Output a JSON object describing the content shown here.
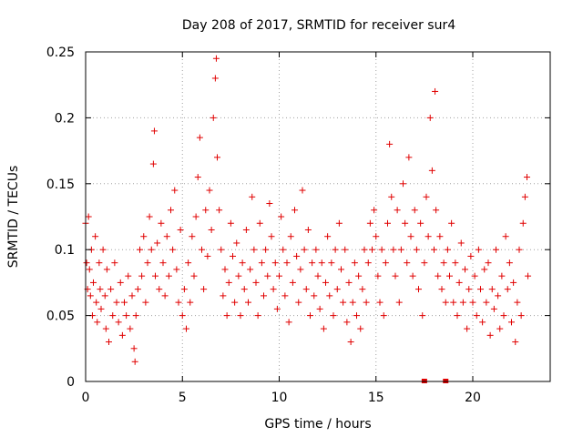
{
  "chart_data": {
    "type": "scatter",
    "title": "Day 208 of 2017, SRMTID for receiver sur4",
    "xlabel": "GPS time / hours",
    "ylabel": "SRMTID / TECUs",
    "xlim": [
      0,
      24
    ],
    "ylim": [
      0,
      0.25
    ],
    "xticks": [
      0,
      5,
      10,
      15,
      20
    ],
    "xtick_labels": [
      "0",
      "5",
      "10",
      "15",
      "20"
    ],
    "yticks": [
      0,
      0.05,
      0.1,
      0.15,
      0.2,
      0.25
    ],
    "ytick_labels": [
      "0",
      "0.05",
      "0.1",
      "0.15",
      "0.2",
      "0.25"
    ],
    "grid": true,
    "marker": "+",
    "color": "#e00000",
    "gap_markers_x": [
      17.5,
      18.6
    ],
    "points": [
      [
        0.0,
        0.12
      ],
      [
        0.05,
        0.09
      ],
      [
        0.1,
        0.07
      ],
      [
        0.15,
        0.125
      ],
      [
        0.2,
        0.085
      ],
      [
        0.25,
        0.065
      ],
      [
        0.3,
        0.1
      ],
      [
        0.35,
        0.05
      ],
      [
        0.4,
        0.075
      ],
      [
        0.5,
        0.11
      ],
      [
        0.55,
        0.06
      ],
      [
        0.6,
        0.045
      ],
      [
        0.7,
        0.09
      ],
      [
        0.75,
        0.07
      ],
      [
        0.8,
        0.055
      ],
      [
        0.9,
        0.1
      ],
      [
        1.0,
        0.065
      ],
      [
        1.05,
        0.04
      ],
      [
        1.1,
        0.085
      ],
      [
        1.2,
        0.03
      ],
      [
        1.3,
        0.07
      ],
      [
        1.4,
        0.05
      ],
      [
        1.5,
        0.09
      ],
      [
        1.6,
        0.06
      ],
      [
        1.7,
        0.045
      ],
      [
        1.8,
        0.075
      ],
      [
        1.9,
        0.035
      ],
      [
        2.0,
        0.06
      ],
      [
        2.1,
        0.05
      ],
      [
        2.2,
        0.08
      ],
      [
        2.3,
        0.04
      ],
      [
        2.4,
        0.065
      ],
      [
        2.5,
        0.025
      ],
      [
        2.55,
        0.015
      ],
      [
        2.6,
        0.05
      ],
      [
        2.7,
        0.07
      ],
      [
        2.8,
        0.1
      ],
      [
        2.9,
        0.08
      ],
      [
        3.0,
        0.11
      ],
      [
        3.1,
        0.06
      ],
      [
        3.2,
        0.09
      ],
      [
        3.3,
        0.125
      ],
      [
        3.4,
        0.1
      ],
      [
        3.5,
        0.165
      ],
      [
        3.55,
        0.19
      ],
      [
        3.6,
        0.08
      ],
      [
        3.7,
        0.105
      ],
      [
        3.8,
        0.07
      ],
      [
        3.9,
        0.12
      ],
      [
        4.0,
        0.09
      ],
      [
        4.1,
        0.065
      ],
      [
        4.2,
        0.11
      ],
      [
        4.3,
        0.08
      ],
      [
        4.4,
        0.13
      ],
      [
        4.5,
        0.1
      ],
      [
        4.6,
        0.145
      ],
      [
        4.7,
        0.085
      ],
      [
        4.8,
        0.06
      ],
      [
        4.9,
        0.115
      ],
      [
        5.0,
        0.05
      ],
      [
        5.1,
        0.07
      ],
      [
        5.2,
        0.04
      ],
      [
        5.3,
        0.09
      ],
      [
        5.4,
        0.06
      ],
      [
        5.5,
        0.11
      ],
      [
        5.6,
        0.08
      ],
      [
        5.7,
        0.125
      ],
      [
        5.8,
        0.155
      ],
      [
        5.9,
        0.185
      ],
      [
        6.0,
        0.1
      ],
      [
        6.1,
        0.07
      ],
      [
        6.2,
        0.13
      ],
      [
        6.3,
        0.095
      ],
      [
        6.4,
        0.145
      ],
      [
        6.5,
        0.115
      ],
      [
        6.6,
        0.2
      ],
      [
        6.7,
        0.23
      ],
      [
        6.75,
        0.245
      ],
      [
        6.8,
        0.17
      ],
      [
        6.9,
        0.13
      ],
      [
        7.0,
        0.1
      ],
      [
        7.1,
        0.065
      ],
      [
        7.2,
        0.085
      ],
      [
        7.3,
        0.05
      ],
      [
        7.4,
        0.075
      ],
      [
        7.5,
        0.12
      ],
      [
        7.6,
        0.095
      ],
      [
        7.7,
        0.06
      ],
      [
        7.8,
        0.105
      ],
      [
        7.9,
        0.08
      ],
      [
        8.0,
        0.05
      ],
      [
        8.1,
        0.09
      ],
      [
        8.2,
        0.07
      ],
      [
        8.3,
        0.115
      ],
      [
        8.4,
        0.06
      ],
      [
        8.5,
        0.085
      ],
      [
        8.6,
        0.14
      ],
      [
        8.7,
        0.1
      ],
      [
        8.8,
        0.075
      ],
      [
        8.9,
        0.05
      ],
      [
        9.0,
        0.12
      ],
      [
        9.1,
        0.09
      ],
      [
        9.2,
        0.065
      ],
      [
        9.3,
        0.1
      ],
      [
        9.4,
        0.08
      ],
      [
        9.5,
        0.135
      ],
      [
        9.6,
        0.11
      ],
      [
        9.7,
        0.07
      ],
      [
        9.8,
        0.09
      ],
      [
        9.9,
        0.055
      ],
      [
        10.0,
        0.08
      ],
      [
        10.1,
        0.125
      ],
      [
        10.2,
        0.1
      ],
      [
        10.3,
        0.065
      ],
      [
        10.4,
        0.09
      ],
      [
        10.5,
        0.045
      ],
      [
        10.6,
        0.11
      ],
      [
        10.7,
        0.075
      ],
      [
        10.8,
        0.13
      ],
      [
        10.9,
        0.095
      ],
      [
        11.0,
        0.06
      ],
      [
        11.1,
        0.085
      ],
      [
        11.2,
        0.145
      ],
      [
        11.3,
        0.1
      ],
      [
        11.4,
        0.07
      ],
      [
        11.5,
        0.115
      ],
      [
        11.6,
        0.05
      ],
      [
        11.7,
        0.09
      ],
      [
        11.8,
        0.065
      ],
      [
        11.9,
        0.1
      ],
      [
        12.0,
        0.08
      ],
      [
        12.1,
        0.055
      ],
      [
        12.2,
        0.09
      ],
      [
        12.3,
        0.04
      ],
      [
        12.4,
        0.075
      ],
      [
        12.5,
        0.11
      ],
      [
        12.6,
        0.065
      ],
      [
        12.7,
        0.09
      ],
      [
        12.8,
        0.05
      ],
      [
        12.9,
        0.1
      ],
      [
        13.0,
        0.07
      ],
      [
        13.1,
        0.12
      ],
      [
        13.2,
        0.085
      ],
      [
        13.3,
        0.06
      ],
      [
        13.4,
        0.1
      ],
      [
        13.5,
        0.045
      ],
      [
        13.6,
        0.075
      ],
      [
        13.7,
        0.03
      ],
      [
        13.8,
        0.06
      ],
      [
        13.9,
        0.09
      ],
      [
        14.0,
        0.05
      ],
      [
        14.1,
        0.08
      ],
      [
        14.2,
        0.04
      ],
      [
        14.3,
        0.07
      ],
      [
        14.4,
        0.1
      ],
      [
        14.5,
        0.06
      ],
      [
        14.6,
        0.09
      ],
      [
        14.7,
        0.12
      ],
      [
        14.8,
        0.1
      ],
      [
        14.9,
        0.13
      ],
      [
        15.0,
        0.11
      ],
      [
        15.1,
        0.08
      ],
      [
        15.2,
        0.06
      ],
      [
        15.3,
        0.1
      ],
      [
        15.4,
        0.05
      ],
      [
        15.5,
        0.09
      ],
      [
        15.6,
        0.12
      ],
      [
        15.7,
        0.18
      ],
      [
        15.8,
        0.14
      ],
      [
        15.9,
        0.1
      ],
      [
        16.0,
        0.08
      ],
      [
        16.1,
        0.13
      ],
      [
        16.2,
        0.06
      ],
      [
        16.3,
        0.1
      ],
      [
        16.4,
        0.15
      ],
      [
        16.5,
        0.12
      ],
      [
        16.6,
        0.09
      ],
      [
        16.7,
        0.17
      ],
      [
        16.8,
        0.11
      ],
      [
        16.9,
        0.08
      ],
      [
        17.0,
        0.13
      ],
      [
        17.1,
        0.1
      ],
      [
        17.2,
        0.07
      ],
      [
        17.3,
        0.12
      ],
      [
        17.4,
        0.05
      ],
      [
        17.5,
        0.09
      ],
      [
        17.6,
        0.14
      ],
      [
        17.7,
        0.11
      ],
      [
        17.8,
        0.2
      ],
      [
        17.9,
        0.16
      ],
      [
        18.0,
        0.1
      ],
      [
        18.05,
        0.22
      ],
      [
        18.1,
        0.13
      ],
      [
        18.2,
        0.08
      ],
      [
        18.3,
        0.11
      ],
      [
        18.4,
        0.07
      ],
      [
        18.5,
        0.09
      ],
      [
        18.6,
        0.06
      ],
      [
        18.7,
        0.1
      ],
      [
        18.8,
        0.08
      ],
      [
        18.9,
        0.12
      ],
      [
        19.0,
        0.06
      ],
      [
        19.1,
        0.09
      ],
      [
        19.2,
        0.05
      ],
      [
        19.3,
        0.075
      ],
      [
        19.4,
        0.105
      ],
      [
        19.5,
        0.06
      ],
      [
        19.6,
        0.085
      ],
      [
        19.7,
        0.04
      ],
      [
        19.8,
        0.07
      ],
      [
        19.9,
        0.095
      ],
      [
        20.0,
        0.06
      ],
      [
        20.1,
        0.08
      ],
      [
        20.2,
        0.05
      ],
      [
        20.3,
        0.1
      ],
      [
        20.4,
        0.07
      ],
      [
        20.5,
        0.045
      ],
      [
        20.6,
        0.085
      ],
      [
        20.7,
        0.06
      ],
      [
        20.8,
        0.09
      ],
      [
        20.9,
        0.035
      ],
      [
        21.0,
        0.07
      ],
      [
        21.1,
        0.055
      ],
      [
        21.2,
        0.1
      ],
      [
        21.3,
        0.065
      ],
      [
        21.4,
        0.04
      ],
      [
        21.5,
        0.08
      ],
      [
        21.6,
        0.05
      ],
      [
        21.7,
        0.11
      ],
      [
        21.8,
        0.07
      ],
      [
        21.9,
        0.09
      ],
      [
        22.0,
        0.045
      ],
      [
        22.1,
        0.075
      ],
      [
        22.2,
        0.03
      ],
      [
        22.3,
        0.06
      ],
      [
        22.4,
        0.1
      ],
      [
        22.5,
        0.05
      ],
      [
        22.6,
        0.12
      ],
      [
        22.7,
        0.14
      ],
      [
        22.8,
        0.155
      ],
      [
        22.85,
        0.08
      ]
    ]
  }
}
